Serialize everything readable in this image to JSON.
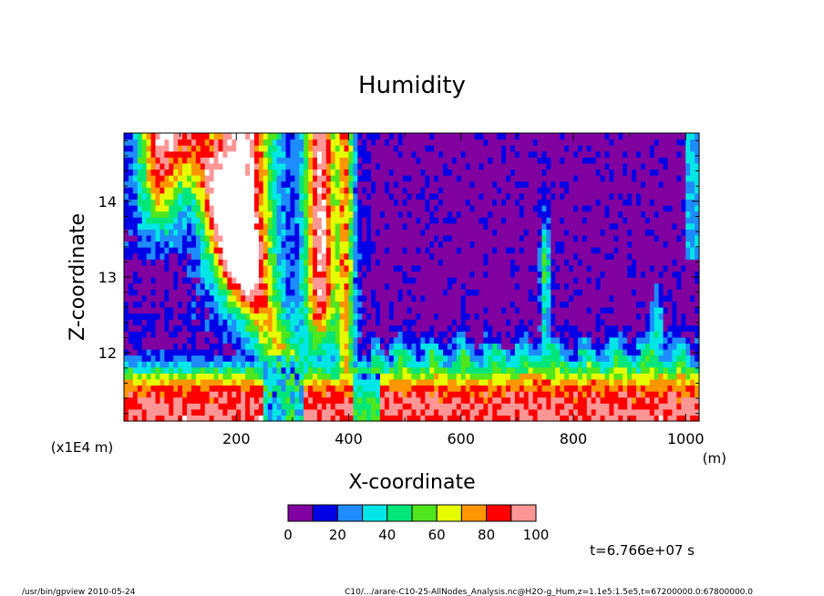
{
  "chart_data": {
    "type": "heatmap",
    "title": "Humidity",
    "xlabel": "X-coordinate",
    "ylabel": "Z-coordinate",
    "x_unit": "(m)",
    "y_unit": "(x1E4 m)",
    "xlim": [
      0,
      1024
    ],
    "ylim": [
      11.1,
      14.9
    ],
    "x_ticks": [
      200,
      400,
      600,
      800,
      1000
    ],
    "y_ticks": [
      12,
      13,
      14
    ],
    "colorbar": {
      "levels": [
        0,
        10,
        20,
        30,
        40,
        50,
        60,
        70,
        80,
        90,
        100
      ],
      "tick_labels": [
        "0",
        "20",
        "40",
        "60",
        "80",
        "100"
      ],
      "colors": [
        "#8000a0",
        "#0000e6",
        "#1e8cff",
        "#00e6e6",
        "#00e678",
        "#50e61e",
        "#e6ff00",
        "#ff9600",
        "#ff0000",
        "#ff9696",
        "#ffffff"
      ]
    },
    "time_label": "t=6.766e+07 s"
  },
  "footer": {
    "left": "/usr/bin/gpview   2010-05-24",
    "right": "C10/.../arare-C10-25-AllNodes_Analysis.nc@H2O-g_Hum,z=1.1e5:1.5e5,t=67200000.0:67800000.0"
  }
}
